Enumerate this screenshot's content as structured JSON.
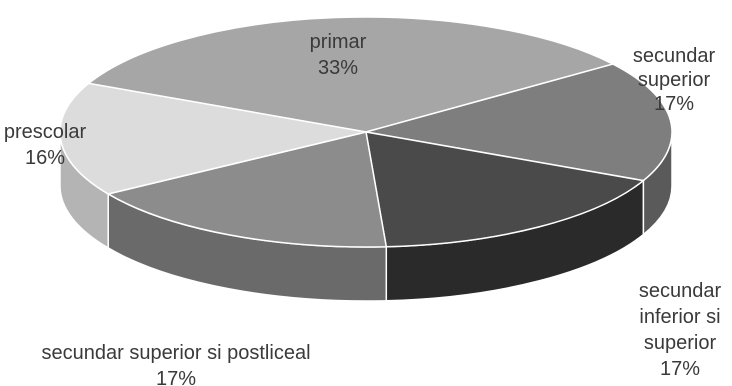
{
  "chart_data": {
    "type": "pie",
    "style": "3d",
    "start_angle_deg": -155,
    "title": "",
    "slices": [
      {
        "label": "primar",
        "value": 33,
        "value_label": "33%",
        "top_color": "#a6a6a6",
        "side_color": "#8a8a8a",
        "label_lines": [
          "primar",
          "33%"
        ]
      },
      {
        "label": "secundar superior",
        "value": 17,
        "value_label": "17%",
        "top_color": "#7e7e7e",
        "side_color": "#5a5a5a",
        "label_lines": [
          "secundar",
          "superior",
          "17%"
        ]
      },
      {
        "label": "secundar inferior si superior",
        "value": 17,
        "value_label": "17%",
        "top_color": "#4a4a4a",
        "side_color": "#2a2a2a",
        "label_lines": [
          "secundar",
          "inferior si",
          "superior",
          "17%"
        ]
      },
      {
        "label": "secundar superior si postliceal",
        "value": 17,
        "value_label": "17%",
        "top_color": "#8c8c8c",
        "side_color": "#6a6a6a",
        "label_lines": [
          "secundar superior si postliceal",
          "17%"
        ]
      },
      {
        "label": "prescolar",
        "value": 16,
        "value_label": "16%",
        "top_color": "#dcdcdc",
        "side_color": "#b4b4b4",
        "label_lines": [
          "prescolar",
          "16%"
        ]
      }
    ]
  }
}
